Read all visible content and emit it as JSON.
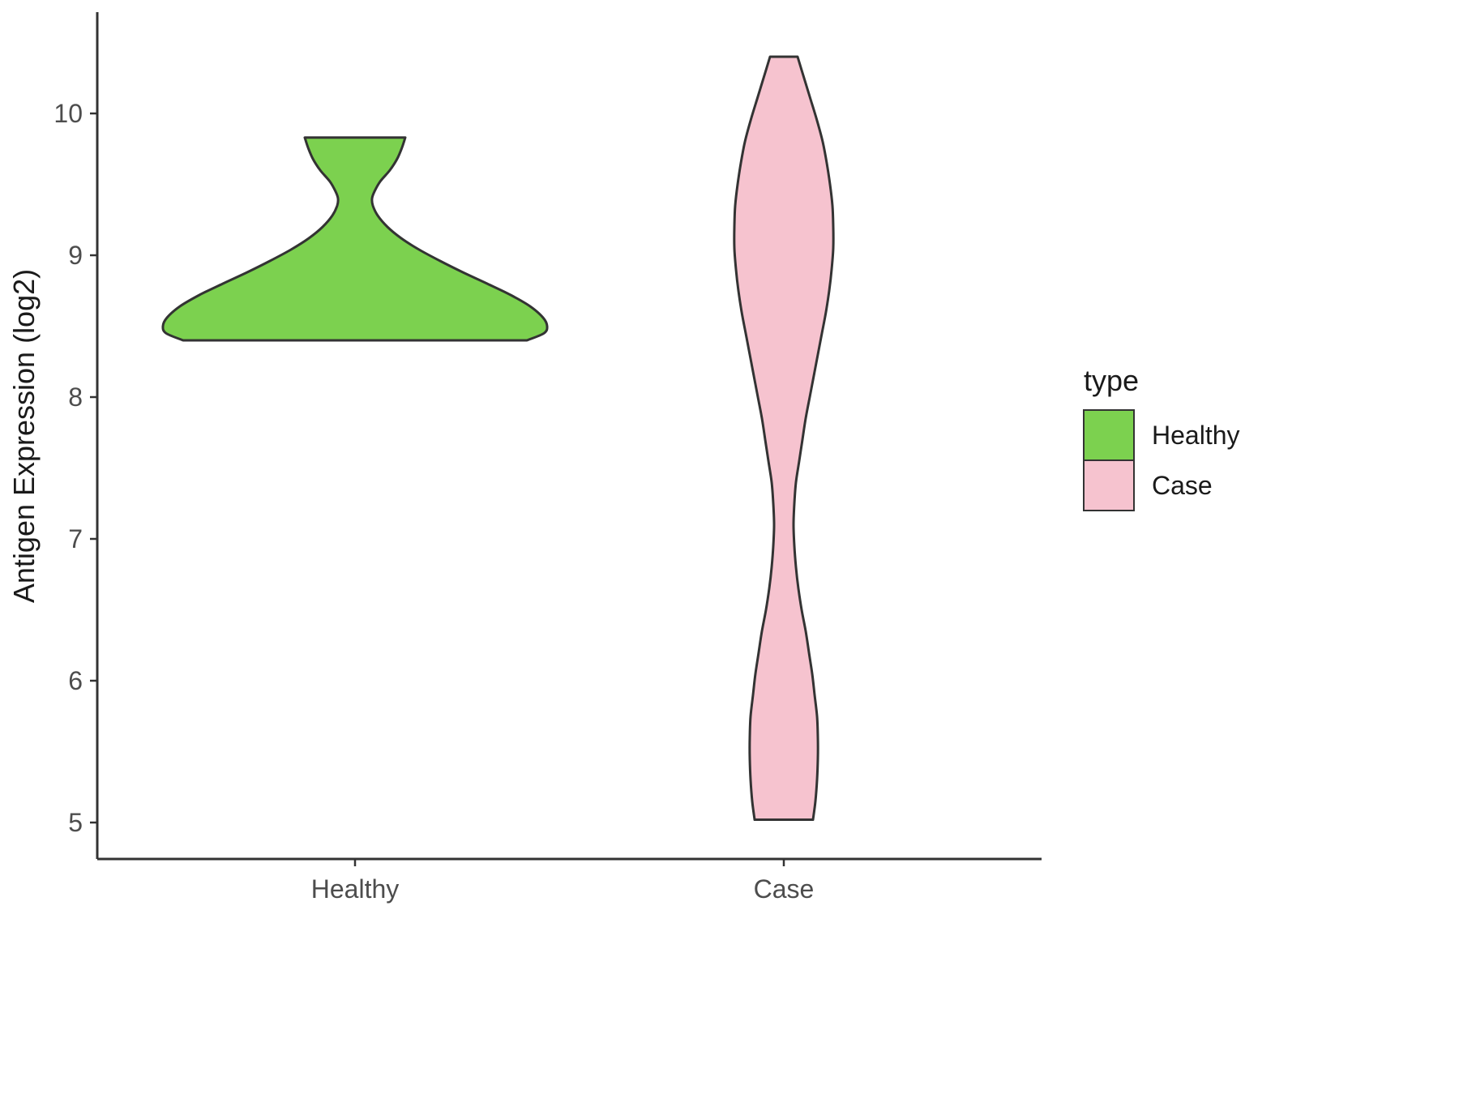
{
  "chart_data": {
    "type": "violin",
    "title": "",
    "xlabel": "",
    "ylabel": "Antigen Expression (log2)",
    "categories": [
      "Healthy",
      "Case"
    ],
    "y_ticks": [
      5,
      6,
      7,
      8,
      9,
      10
    ],
    "ylim": [
      4.74,
      10.71
    ],
    "grid": false,
    "panel_background": "#ffffff",
    "axis_color": "#333333",
    "tick_label_color": "#4d4d4d",
    "title_color": "#1a1a1a",
    "legend": {
      "title": "type",
      "position": "right",
      "entries": [
        {
          "label": "Healthy",
          "color": "#7CD14F"
        },
        {
          "label": "Case",
          "color": "#F6C3CF"
        }
      ]
    },
    "series": [
      {
        "name": "Healthy",
        "fill": "#7CD14F",
        "stroke": "#333333",
        "range_min": 8.4,
        "range_max": 9.83,
        "profile": [
          [
            9.83,
            62
          ],
          [
            9.76,
            58
          ],
          [
            9.68,
            52
          ],
          [
            9.6,
            43
          ],
          [
            9.52,
            31
          ],
          [
            9.45,
            24
          ],
          [
            9.4,
            21
          ],
          [
            9.35,
            22
          ],
          [
            9.28,
            28
          ],
          [
            9.2,
            40
          ],
          [
            9.12,
            57
          ],
          [
            9.04,
            79
          ],
          [
            8.96,
            105
          ],
          [
            8.88,
            133
          ],
          [
            8.8,
            163
          ],
          [
            8.72,
            192
          ],
          [
            8.64,
            216
          ],
          [
            8.56,
            232
          ],
          [
            8.5,
            237
          ],
          [
            8.45,
            233
          ],
          [
            8.4,
            212
          ]
        ]
      },
      {
        "name": "Case",
        "fill": "#F6C3CF",
        "stroke": "#333333",
        "range_min": 5.02,
        "range_max": 10.4,
        "profile": [
          [
            10.4,
            17
          ],
          [
            10.25,
            25
          ],
          [
            10.1,
            33
          ],
          [
            9.95,
            41
          ],
          [
            9.8,
            48
          ],
          [
            9.65,
            53
          ],
          [
            9.5,
            57
          ],
          [
            9.35,
            60
          ],
          [
            9.2,
            61
          ],
          [
            9.05,
            61
          ],
          [
            8.9,
            59
          ],
          [
            8.75,
            56
          ],
          [
            8.6,
            52
          ],
          [
            8.45,
            47
          ],
          [
            8.3,
            42
          ],
          [
            8.15,
            37
          ],
          [
            8.0,
            32
          ],
          [
            7.85,
            27
          ],
          [
            7.7,
            23
          ],
          [
            7.55,
            19
          ],
          [
            7.4,
            15
          ],
          [
            7.25,
            13
          ],
          [
            7.1,
            12
          ],
          [
            6.95,
            13
          ],
          [
            6.8,
            15
          ],
          [
            6.65,
            18
          ],
          [
            6.5,
            22
          ],
          [
            6.35,
            27
          ],
          [
            6.2,
            31
          ],
          [
            6.05,
            35
          ],
          [
            5.9,
            38
          ],
          [
            5.75,
            41
          ],
          [
            5.6,
            42
          ],
          [
            5.45,
            42
          ],
          [
            5.3,
            41
          ],
          [
            5.15,
            39
          ],
          [
            5.02,
            36
          ]
        ]
      }
    ],
    "profile_units": "each profile entry is [expression_value_log2, half_width_px]"
  }
}
